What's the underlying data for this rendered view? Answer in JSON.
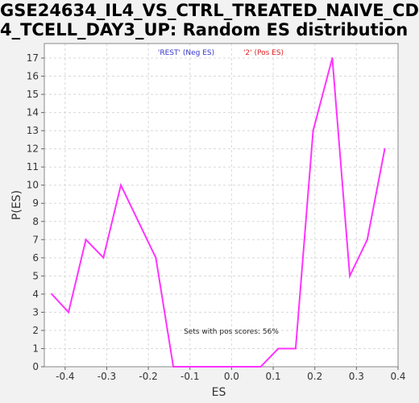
{
  "chart_data": {
    "type": "line",
    "title_line1": "GSE24634_IL4_VS_CTRL_TREATED_NAIVE_CD",
    "title_line2": "4_TCELL_DAY3_UP: Random ES distribution",
    "xlabel": "ES",
    "ylabel": "P(ES)",
    "xlim": [
      -0.45,
      0.4
    ],
    "ylim": [
      0,
      17.8
    ],
    "xticks": [
      -0.4,
      -0.3,
      -0.2,
      -0.1,
      0.0,
      0.1,
      0.2,
      0.3,
      0.4
    ],
    "xtick_labels": [
      "-0.4",
      "-0.3",
      "-0.2",
      "-0.1",
      "0.0",
      "0.1",
      "0.2",
      "0.3",
      "0.4"
    ],
    "yticks": [
      0,
      1,
      2,
      3,
      4,
      5,
      6,
      7,
      8,
      9,
      10,
      11,
      12,
      13,
      14,
      15,
      16,
      17
    ],
    "ytick_labels": [
      "0",
      "1",
      "2",
      "3",
      "4",
      "5",
      "6",
      "7",
      "8",
      "9",
      "10",
      "11",
      "12",
      "13",
      "14",
      "15",
      "16",
      "17"
    ],
    "grid": true,
    "legend": [
      {
        "label": "'REST' (Neg ES)",
        "color": "#3333cc"
      },
      {
        "label": "'2' (Pos ES)",
        "color": "#dd2222"
      }
    ],
    "annotation": "Sets with pos scores: 56%",
    "series": [
      {
        "color": "#ff33ff",
        "x": [
          -0.432,
          -0.392,
          -0.35,
          -0.308,
          -0.266,
          -0.182,
          -0.14,
          -0.098,
          -0.056,
          -0.014,
          0.028,
          0.07,
          0.112,
          0.154,
          0.196,
          0.242,
          0.284,
          0.326,
          0.368
        ],
        "y": [
          4,
          3,
          7,
          6,
          10,
          6,
          0,
          0,
          0,
          0,
          0,
          0,
          1,
          1,
          13,
          17,
          5,
          7,
          12
        ]
      }
    ]
  }
}
